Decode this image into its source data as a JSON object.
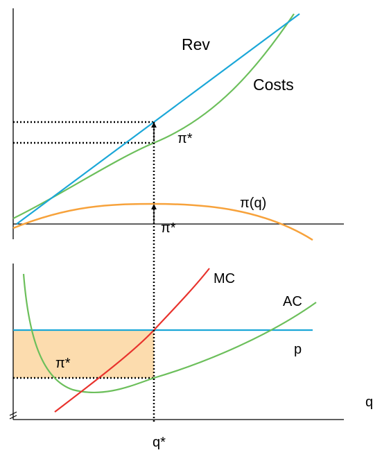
{
  "chart_data": [
    {
      "type": "line",
      "title": "",
      "xlabel": "",
      "ylabel": "",
      "series": [
        {
          "name": "Rev",
          "color": "#1ba7d8",
          "shape": "linear revenue line rising from origin"
        },
        {
          "name": "Costs",
          "color": "#6cbf5b",
          "shape": "convex cost curve rising"
        },
        {
          "name": "π(q)",
          "color": "#f7a23b",
          "shape": "concave profit curve peaking at q*"
        }
      ],
      "annotations": [
        "π*",
        "π*"
      ],
      "guides": "dotted lines from revenue and cost at q* to the vertical axis; arrows marking profit gap",
      "grid": false
    },
    {
      "type": "line",
      "title": "",
      "xlabel": "q",
      "ylabel": "",
      "x_tick_labels": [
        "q*"
      ],
      "series": [
        {
          "name": "MC",
          "color": "#e8332d",
          "shape": "rising marginal cost line"
        },
        {
          "name": "AC",
          "color": "#6cbf5b",
          "shape": "U-shaped average cost curve"
        },
        {
          "name": "p",
          "color": "#1ba7d8",
          "shape": "horizontal price line"
        }
      ],
      "shaded_region": {
        "label": "π*",
        "color": "#fcdcae",
        "meaning": "profit rectangle between p and AC up to q*"
      },
      "guides": "vertical dotted line at q* spanning both panels; dotted line from AC at q* to vertical axis",
      "grid": false
    }
  ],
  "labels": {
    "rev": "Rev",
    "costs": "Costs",
    "pi_star_top": "π*",
    "pi_star_gap": "π*",
    "pi_q": "π(q)",
    "mc": "MC",
    "ac": "AC",
    "p": "p",
    "pi_star_area": "π*",
    "q_axis": "q",
    "q_star": "q*"
  },
  "colors": {
    "revenue": "#1ba7d8",
    "cost": "#6cbf5b",
    "profit": "#f7a23b",
    "mc": "#e8332d",
    "price": "#1ba7d8",
    "profit_area": "#fcdcae",
    "axis": "#000000"
  }
}
